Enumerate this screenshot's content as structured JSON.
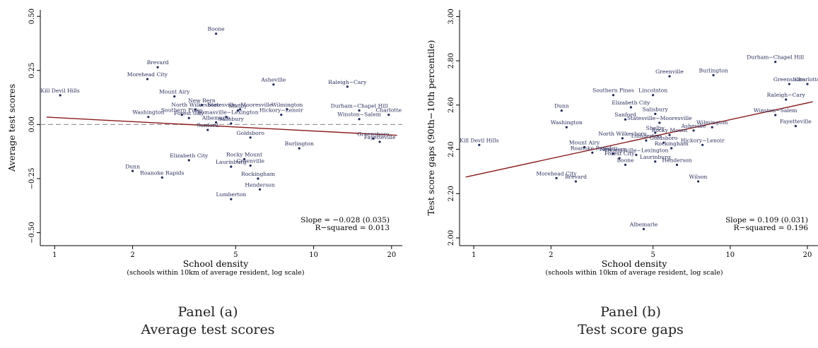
{
  "chart_data": [
    {
      "type": "scatter",
      "panel": "Panel (a)",
      "subtitle": "Average test scores",
      "xlabel": "School density",
      "xsublabel": "(schools within 10km of average resident, log scale)",
      "ylabel": "Average test scores",
      "xscale": "log",
      "xlim": [
        0.88,
        22
      ],
      "ylim": [
        -0.56,
        0.53
      ],
      "xticks": [
        1,
        2,
        5,
        10,
        20
      ],
      "yticks": [
        -0.5,
        -0.25,
        0,
        0.25,
        0.5
      ],
      "ytick_labels": [
        "−0.50",
        "−0.25",
        "0.00",
        "0.25",
        "0.50"
      ],
      "reference_line": {
        "y": 0,
        "style": "dashed"
      },
      "fit_line": {
        "x": [
          0.93,
          21
        ],
        "y": [
          0.034,
          -0.05
        ]
      },
      "stats": [
        "Slope = −0.028 (0.035)",
        "R−squared = 0.013"
      ],
      "points": [
        {
          "name": "Boone",
          "x": 4.2,
          "y": 0.42
        },
        {
          "name": "Brevard",
          "x": 2.5,
          "y": 0.265
        },
        {
          "name": "Morehead City",
          "x": 2.28,
          "y": 0.21
        },
        {
          "name": "Kill Devil Hills",
          "x": 1.05,
          "y": 0.135
        },
        {
          "name": "Mount Airy",
          "x": 2.9,
          "y": 0.13
        },
        {
          "name": "Asheville",
          "x": 7.0,
          "y": 0.185
        },
        {
          "name": "Raleigh−Cary",
          "x": 13.5,
          "y": 0.175
        },
        {
          "name": "New Bern",
          "x": 3.7,
          "y": 0.09
        },
        {
          "name": "North Wilkesboro",
          "x": 3.5,
          "y": 0.07
        },
        {
          "name": "Statesville−Mooresville",
          "x": 5.2,
          "y": 0.07
        },
        {
          "name": "Shelby",
          "x": 5.1,
          "y": 0.065
        },
        {
          "name": "Wilmington",
          "x": 7.9,
          "y": 0.07
        },
        {
          "name": "Washington",
          "x": 2.3,
          "y": 0.035
        },
        {
          "name": "Southern Pines",
          "x": 3.1,
          "y": 0.045
        },
        {
          "name": "Forest City",
          "x": 3.3,
          "y": 0.03
        },
        {
          "name": "Thomasville−Lexington",
          "x": 4.6,
          "y": 0.035
        },
        {
          "name": "Hickory−Lenoir",
          "x": 7.5,
          "y": 0.045
        },
        {
          "name": "Durham−Chapel Hill",
          "x": 15.0,
          "y": 0.065
        },
        {
          "name": "Charlotte",
          "x": 19.5,
          "y": 0.045
        },
        {
          "name": "Winston−Salem",
          "x": 15.0,
          "y": 0.025
        },
        {
          "name": "Albemarle",
          "x": 4.2,
          "y": 0.01
        },
        {
          "name": "Salisbury",
          "x": 4.8,
          "y": 0.005
        },
        {
          "name": "Sanford",
          "x": 3.9,
          "y": -0.025
        },
        {
          "name": "Goldsboro",
          "x": 5.7,
          "y": -0.06
        },
        {
          "name": "Greensboro",
          "x": 17.0,
          "y": -0.065
        },
        {
          "name": "Fayetteville",
          "x": 18.0,
          "y": -0.08
        },
        {
          "name": "Burlington",
          "x": 8.8,
          "y": -0.11
        },
        {
          "name": "Elizabeth City",
          "x": 3.3,
          "y": -0.165
        },
        {
          "name": "Rocky Mount",
          "x": 5.4,
          "y": -0.16
        },
        {
          "name": "Laurinburg",
          "x": 4.8,
          "y": -0.195
        },
        {
          "name": "Greenville",
          "x": 5.7,
          "y": -0.19
        },
        {
          "name": "Dunn",
          "x": 2.0,
          "y": -0.215
        },
        {
          "name": "Roanoke Rapids",
          "x": 2.6,
          "y": -0.245
        },
        {
          "name": "Rockingham",
          "x": 6.1,
          "y": -0.25
        },
        {
          "name": "Henderson",
          "x": 6.2,
          "y": -0.3
        },
        {
          "name": "Lumberton",
          "x": 4.8,
          "y": -0.345
        }
      ]
    },
    {
      "type": "scatter",
      "panel": "Panel (b)",
      "subtitle": "Test score gaps",
      "xlabel": "School density",
      "xsublabel": "(schools within 10km of average resident, log scale)",
      "ylabel": "Test score gaps (90th−10th percentile)",
      "xscale": "log",
      "xlim": [
        0.88,
        22
      ],
      "ylim": [
        1.965,
        3.03
      ],
      "xticks": [
        1,
        2,
        5,
        10,
        20
      ],
      "yticks": [
        2.0,
        2.2,
        2.4,
        2.6,
        2.8,
        3.0
      ],
      "ytick_labels": [
        "2.00",
        "2.20",
        "2.40",
        "2.60",
        "2.80",
        "3.00"
      ],
      "fit_line": {
        "x": [
          0.93,
          21
        ],
        "y": [
          2.275,
          2.615
        ]
      },
      "stats": [
        "Slope = 0.109 (0.031)",
        "R−squared = 0.196"
      ],
      "points": [
        {
          "name": "Durham−Chapel Hill",
          "x": 15.0,
          "y": 2.795
        },
        {
          "name": "Greenville",
          "x": 5.8,
          "y": 2.73
        },
        {
          "name": "Burlington",
          "x": 8.6,
          "y": 2.735
        },
        {
          "name": "Greensboro",
          "x": 17.0,
          "y": 2.695
        },
        {
          "name": "Charlotte",
          "x": 20.0,
          "y": 2.695
        },
        {
          "name": "Southern Pines",
          "x": 3.5,
          "y": 2.645
        },
        {
          "name": "Lincolnton",
          "x": 5.0,
          "y": 2.645
        },
        {
          "name": "Raleigh−Cary",
          "x": 16.5,
          "y": 2.625
        },
        {
          "name": "Elizabeth City",
          "x": 4.1,
          "y": 2.59
        },
        {
          "name": "Dunn",
          "x": 2.2,
          "y": 2.575
        },
        {
          "name": "Salisbury",
          "x": 5.1,
          "y": 2.56
        },
        {
          "name": "Sanford",
          "x": 3.9,
          "y": 2.535
        },
        {
          "name": "Statesville−Mooresville",
          "x": 5.3,
          "y": 2.52
        },
        {
          "name": "Winston−Salem",
          "x": 15.0,
          "y": 2.555
        },
        {
          "name": "Washington",
          "x": 2.3,
          "y": 2.5
        },
        {
          "name": "Wilmington",
          "x": 8.5,
          "y": 2.5
        },
        {
          "name": "Fayetteville",
          "x": 18.0,
          "y": 2.505
        },
        {
          "name": "Asheville",
          "x": 7.2,
          "y": 2.485
        },
        {
          "name": "Shelby",
          "x": 5.1,
          "y": 2.475
        },
        {
          "name": "Rocky Mount",
          "x": 5.8,
          "y": 2.465
        },
        {
          "name": "North Wilkesboro",
          "x": 3.8,
          "y": 2.45
        },
        {
          "name": "Lumberton",
          "x": 4.7,
          "y": 2.44
        },
        {
          "name": "Goldsboro",
          "x": 5.5,
          "y": 2.43
        },
        {
          "name": "Hickory−Lenoir",
          "x": 7.8,
          "y": 2.42
        },
        {
          "name": "Kill Devil Hills",
          "x": 1.05,
          "y": 2.42
        },
        {
          "name": "Mount Airy",
          "x": 2.7,
          "y": 2.41
        },
        {
          "name": "Rockingham",
          "x": 5.9,
          "y": 2.405
        },
        {
          "name": "Roanoke Rapids",
          "x": 2.9,
          "y": 2.385
        },
        {
          "name": "New Bern",
          "x": 3.5,
          "y": 2.38
        },
        {
          "name": "Thomasville−Lexington",
          "x": 4.3,
          "y": 2.375
        },
        {
          "name": "Forest City",
          "x": 3.7,
          "y": 2.36
        },
        {
          "name": "Laurinburg",
          "x": 5.1,
          "y": 2.345
        },
        {
          "name": "Albemarle",
          "x": 4.6,
          "y": 2.04
        },
        {
          "name": "Henderson",
          "x": 6.2,
          "y": 2.33
        },
        {
          "name": "Boone",
          "x": 3.9,
          "y": 2.33
        },
        {
          "name": "Wilson",
          "x": 7.5,
          "y": 2.255
        },
        {
          "name": "Morehead City",
          "x": 2.1,
          "y": 2.27
        },
        {
          "name": "Brevard",
          "x": 2.5,
          "y": 2.255
        }
      ]
    }
  ],
  "captions": [
    {
      "panel": "Panel (a)",
      "title": "Average test scores"
    },
    {
      "panel": "Panel (b)",
      "title": "Test score gaps"
    }
  ]
}
